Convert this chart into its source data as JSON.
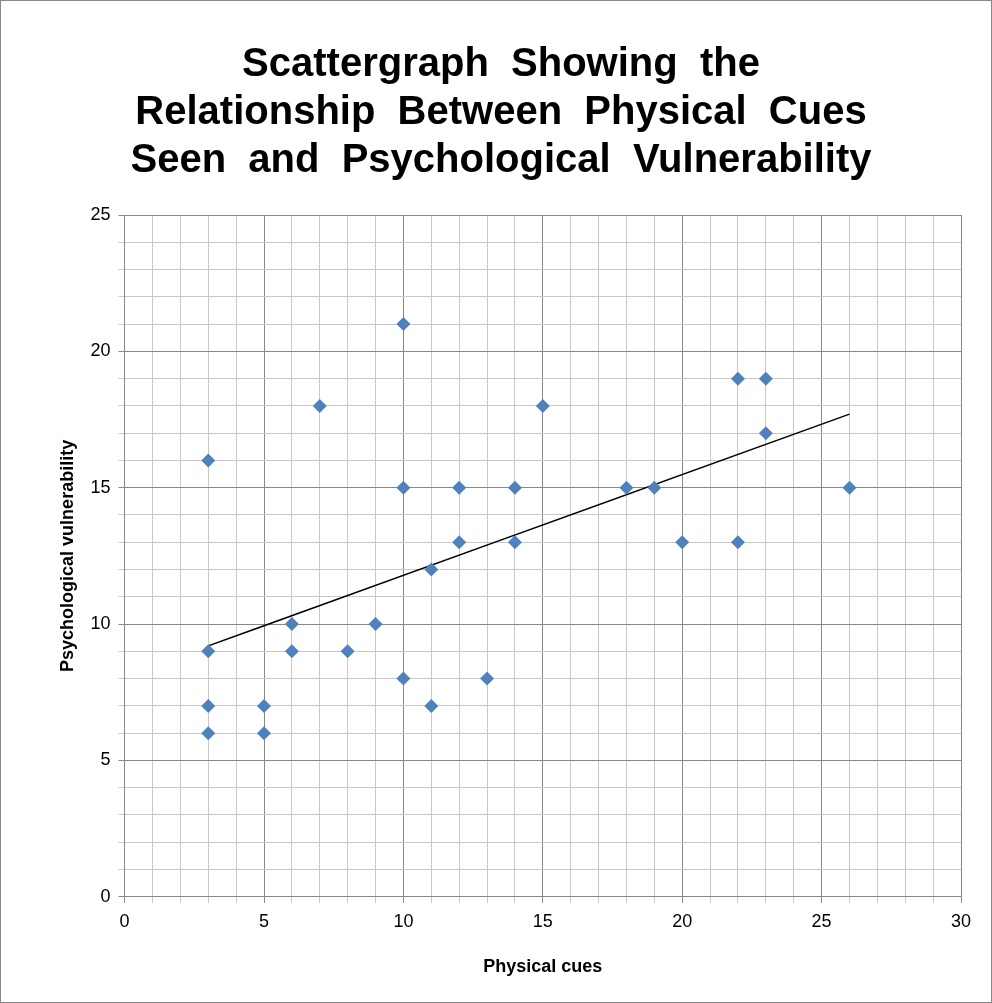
{
  "chart_data": {
    "type": "scatter",
    "title": "Scattergraph  Showing  the Relationship  Between Physical Cues Seen  and  Psychological  Vulnerability",
    "xlabel": "Physical cues",
    "ylabel": "Psychological vulnerability",
    "xlim": [
      0,
      30
    ],
    "ylim": [
      0,
      25
    ],
    "xticks": [
      0,
      {
        "value": 1,
        "label": null
      },
      {
        "value": 2,
        "label": null
      },
      {
        "value": 3,
        "label": null
      },
      {
        "value": 4,
        "label": null
      },
      5,
      {
        "value": 6,
        "label": null
      },
      {
        "value": 7,
        "label": null
      },
      {
        "value": 8,
        "label": null
      },
      {
        "value": 9,
        "label": null
      },
      10,
      {
        "value": 11,
        "label": null
      },
      {
        "value": 12,
        "label": null
      },
      {
        "value": 13,
        "label": null
      },
      {
        "value": 14,
        "label": null
      },
      15,
      {
        "value": 16,
        "label": null
      },
      {
        "value": 17,
        "label": null
      },
      {
        "value": 18,
        "label": null
      },
      {
        "value": 19,
        "label": null
      },
      20,
      {
        "value": 21,
        "label": null
      },
      {
        "value": 22,
        "label": null
      },
      {
        "value": 23,
        "label": null
      },
      {
        "value": 24,
        "label": null
      },
      25,
      {
        "value": 26,
        "label": null
      },
      {
        "value": 27,
        "label": null
      },
      {
        "value": 28,
        "label": null
      },
      {
        "value": 29,
        "label": null
      },
      30
    ],
    "yticks": [
      0,
      {
        "value": 1,
        "label": null
      },
      {
        "value": 2,
        "label": null
      },
      {
        "value": 3,
        "label": null
      },
      {
        "value": 4,
        "label": null
      },
      5,
      {
        "value": 6,
        "label": null
      },
      {
        "value": 7,
        "label": null
      },
      {
        "value": 8,
        "label": null
      },
      {
        "value": 9,
        "label": null
      },
      10,
      {
        "value": 11,
        "label": null
      },
      {
        "value": 12,
        "label": null
      },
      {
        "value": 13,
        "label": null
      },
      {
        "value": 14,
        "label": null
      },
      15,
      {
        "value": 16,
        "label": null
      },
      {
        "value": 17,
        "label": null
      },
      {
        "value": 18,
        "label": null
      },
      {
        "value": 19,
        "label": null
      },
      20,
      {
        "value": 21,
        "label": null
      },
      {
        "value": 22,
        "label": null
      },
      {
        "value": 23,
        "label": null
      },
      {
        "value": 24,
        "label": null
      },
      25
    ],
    "grid": true,
    "legend": false,
    "series": [
      {
        "color": "#4f81bd",
        "marker": "diamond",
        "x": [
          3,
          3,
          3,
          3,
          5,
          5,
          6,
          6,
          7,
          8,
          9,
          10,
          10,
          10,
          11,
          11,
          12,
          12,
          13,
          14,
          14,
          15,
          18,
          19,
          20,
          22,
          22,
          23,
          23,
          26
        ],
        "values": [
          16,
          9,
          7,
          6,
          7,
          6,
          10,
          9,
          18,
          9,
          10,
          21,
          15,
          8,
          12,
          7,
          15,
          13,
          8,
          15,
          13,
          18,
          15,
          15,
          13,
          19,
          13,
          19,
          17,
          15
        ]
      },
      {
        "type": "line",
        "color": "#000000",
        "marker": "none",
        "line_style": "solid",
        "x": [
          3,
          26
        ],
        "values": [
          9.2,
          17.7
        ]
      }
    ]
  }
}
